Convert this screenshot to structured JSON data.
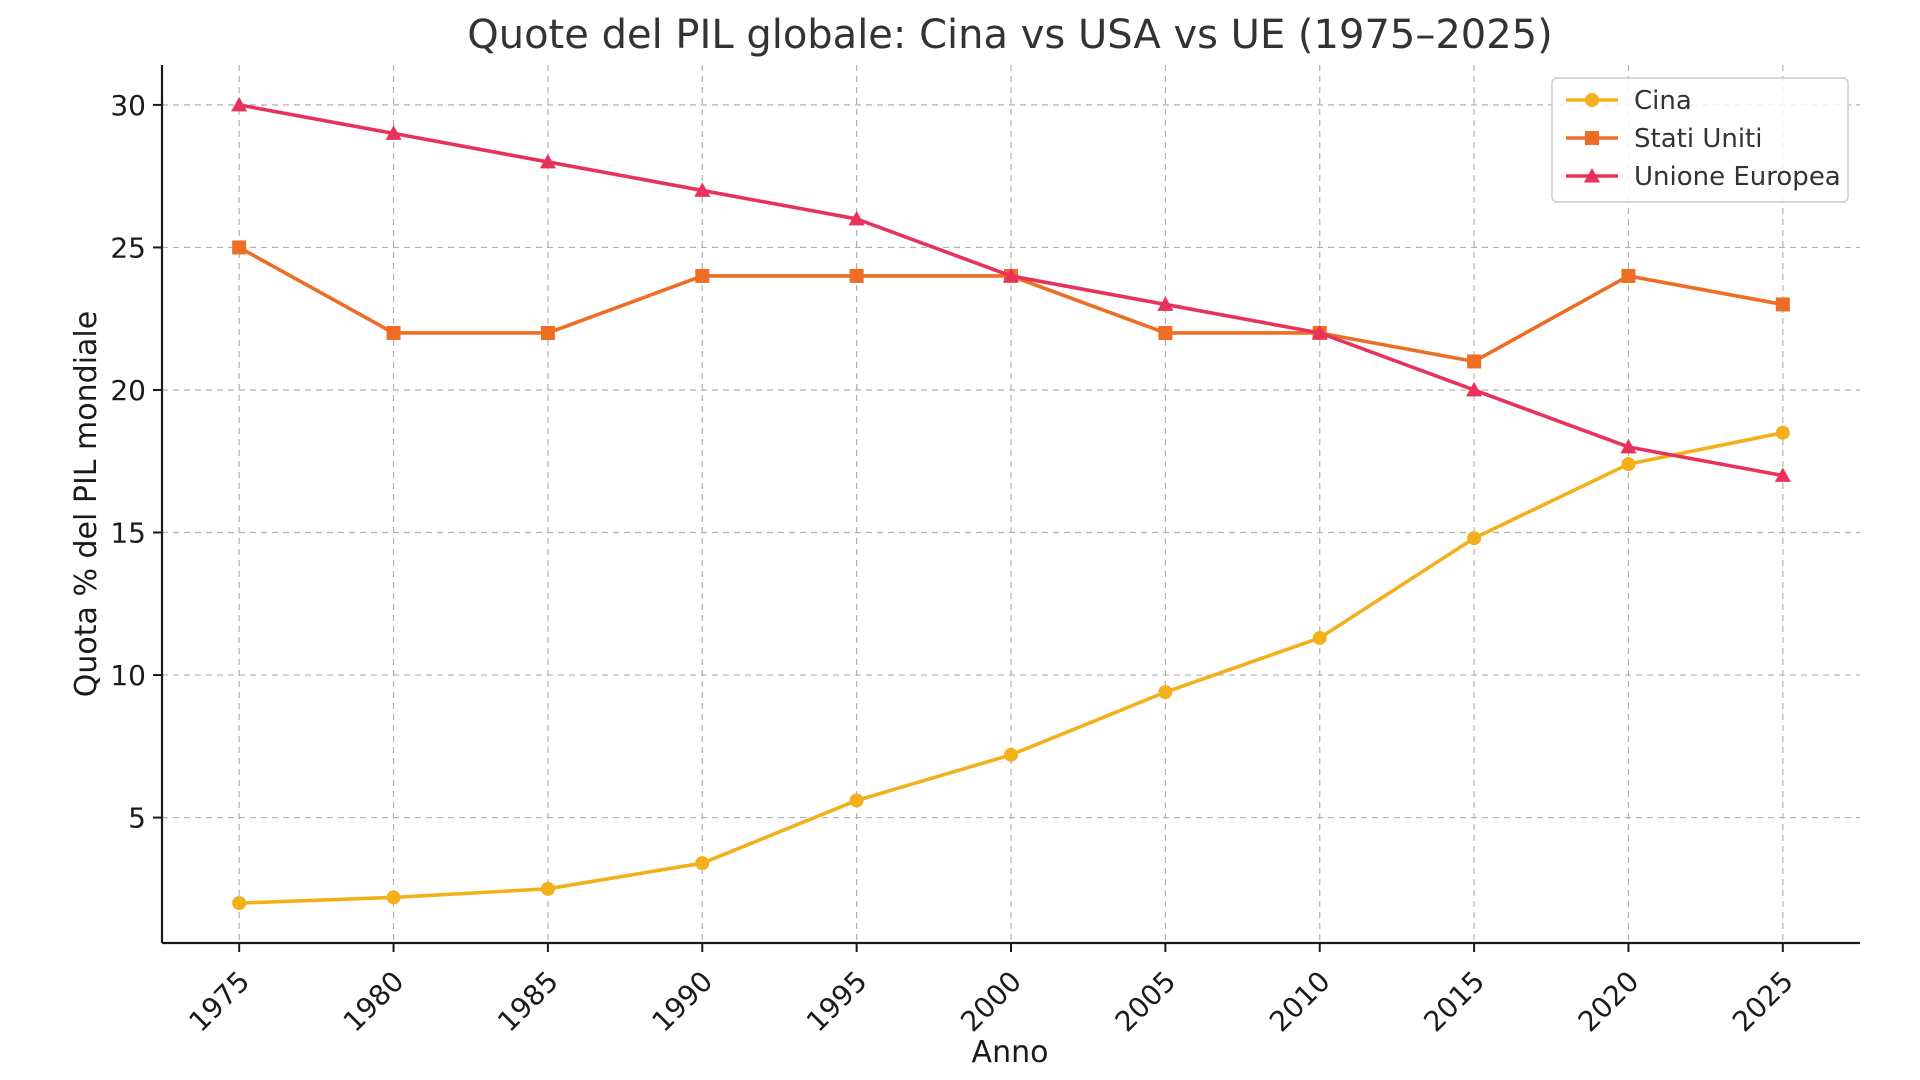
{
  "chart_data": {
    "type": "line",
    "title": "Quote del PIL globale: Cina vs USA vs UE (1975–2025)",
    "xlabel": "Anno",
    "ylabel": "Quota % del PIL mondiale",
    "x": [
      1975,
      1980,
      1985,
      1990,
      1995,
      2000,
      2005,
      2010,
      2015,
      2020,
      2025
    ],
    "x_tick_labels": [
      "1975",
      "1980",
      "1985",
      "1990",
      "1995",
      "2000",
      "2005",
      "2010",
      "2015",
      "2020",
      "2025"
    ],
    "y_ticks": [
      5,
      10,
      15,
      20,
      25,
      30
    ],
    "y_tick_labels": [
      "5",
      "10",
      "15",
      "20",
      "25",
      "30"
    ],
    "xlim": [
      1972.5,
      2027.5
    ],
    "ylim": [
      0.6,
      31.4
    ],
    "grid": true,
    "legend_position": "top-right",
    "series": [
      {
        "name": "Cina",
        "color": "#F4B01B",
        "marker": "circle",
        "values": [
          2.0,
          2.2,
          2.5,
          3.4,
          5.6,
          7.2,
          9.4,
          11.3,
          14.8,
          17.4,
          18.5
        ]
      },
      {
        "name": "Stati Uniti",
        "color": "#EE6D24",
        "marker": "square",
        "values": [
          25,
          22,
          22,
          24,
          24,
          24,
          22,
          22,
          21,
          24,
          23
        ]
      },
      {
        "name": "Unione Europea",
        "color": "#E8325B",
        "marker": "triangle",
        "values": [
          30,
          29,
          28,
          27,
          26,
          24,
          23,
          22,
          20,
          18,
          17
        ]
      }
    ]
  }
}
